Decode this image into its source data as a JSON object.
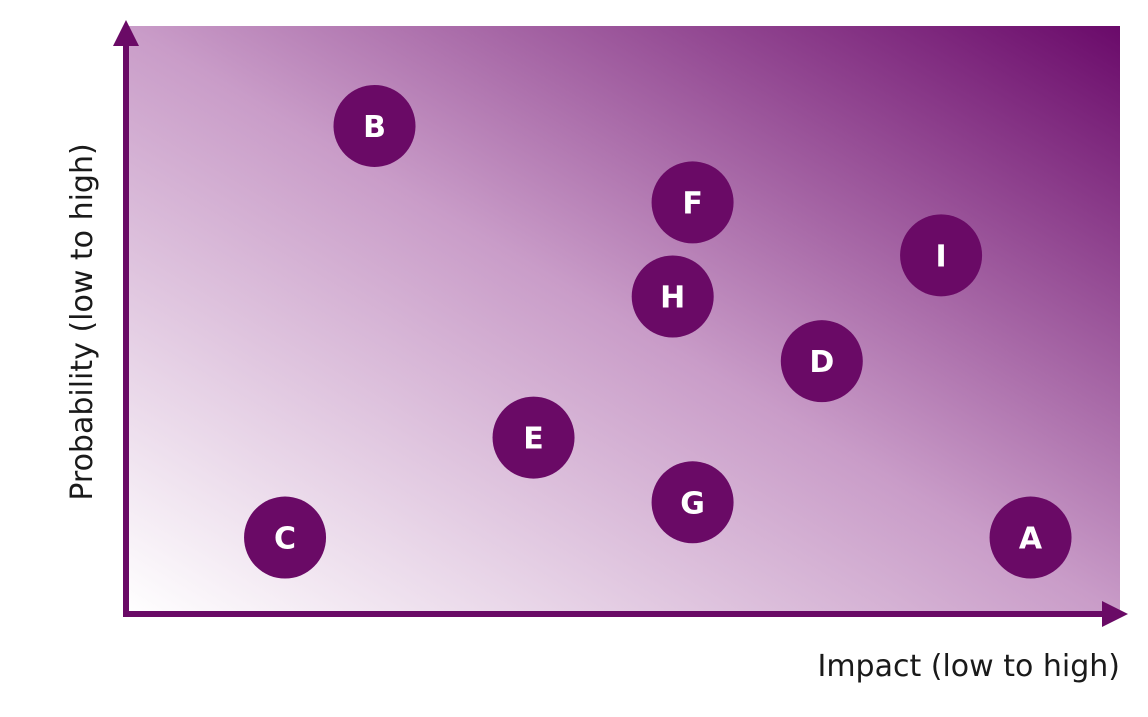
{
  "chart_data": {
    "type": "scatter",
    "xlabel": "Impact (low to high)",
    "ylabel": "Probability (low to high)",
    "xlim": [
      0,
      10
    ],
    "ylim": [
      0,
      10
    ],
    "grid": false,
    "legend": "none",
    "background_gradient": {
      "low": "#ffffff",
      "mid": "#c99cc8",
      "high": "#6a0a6a"
    },
    "marker_color": "#6a0a66",
    "points": [
      {
        "label": "A",
        "x": 9.1,
        "y": 1.3
      },
      {
        "label": "B",
        "x": 2.5,
        "y": 8.3
      },
      {
        "label": "C",
        "x": 1.6,
        "y": 1.3
      },
      {
        "label": "D",
        "x": 7.0,
        "y": 4.3
      },
      {
        "label": "E",
        "x": 4.1,
        "y": 3.0
      },
      {
        "label": "F",
        "x": 5.7,
        "y": 7.0
      },
      {
        "label": "G",
        "x": 5.7,
        "y": 1.9
      },
      {
        "label": "H",
        "x": 5.5,
        "y": 5.4
      },
      {
        "label": "I",
        "x": 8.2,
        "y": 6.1
      }
    ]
  }
}
